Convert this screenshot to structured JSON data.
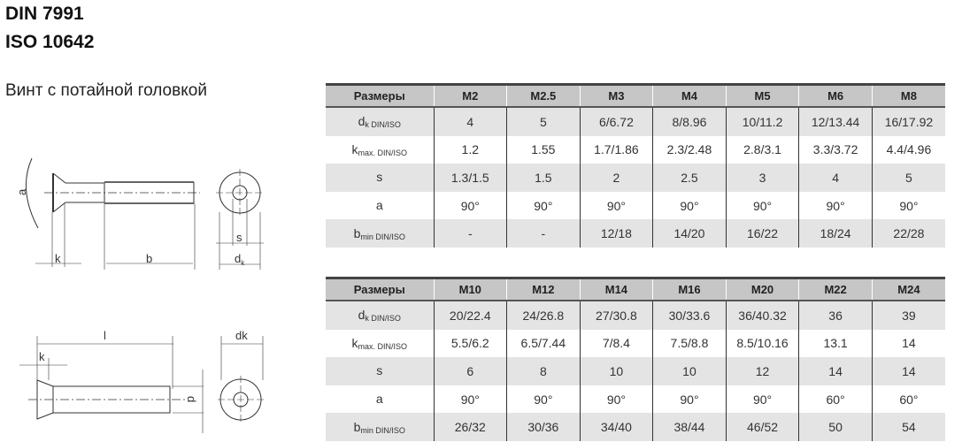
{
  "title_line1": "DIN 7991",
  "title_line2": "ISO 10642",
  "subtitle": "Винт с потайной головкой",
  "drawing_labels": {
    "a": "a",
    "k": "k",
    "b": "b",
    "s": "s",
    "dk_sub": "d",
    "dk_subscript": "k",
    "l": "l",
    "k2": "k",
    "dk": "dk",
    "d": "d"
  },
  "colors": {
    "header_bg": "#c6c6c6",
    "row_alt_bg": "#e4e4e4"
  },
  "tables": [
    {
      "header": [
        "Размеры",
        "M2",
        "M2.5",
        "M3",
        "M4",
        "M5",
        "M6",
        "M8"
      ],
      "rows": [
        {
          "label": {
            "main": "d",
            "sub": "k DIN/ISO"
          },
          "values": [
            "4",
            "5",
            "6/6.72",
            "8/8.96",
            "10/11.2",
            "12/13.44",
            "16/17.92"
          ]
        },
        {
          "label": {
            "main": "k",
            "sub": "max. DIN/ISO"
          },
          "values": [
            "1.2",
            "1.55",
            "1.7/1.86",
            "2.3/2.48",
            "2.8/3.1",
            "3.3/3.72",
            "4.4/4.96"
          ]
        },
        {
          "label": {
            "main": "s",
            "sub": ""
          },
          "values": [
            "1.3/1.5",
            "1.5",
            "2",
            "2.5",
            "3",
            "4",
            "5"
          ]
        },
        {
          "label": {
            "main": "a",
            "sub": ""
          },
          "values": [
            "90°",
            "90°",
            "90°",
            "90°",
            "90°",
            "90°",
            "90°"
          ]
        },
        {
          "label": {
            "main": "b",
            "sub": "min DIN/ISO"
          },
          "values": [
            "-",
            "-",
            "12/18",
            "14/20",
            "16/22",
            "18/24",
            "22/28"
          ]
        }
      ]
    },
    {
      "header": [
        "Размеры",
        "M10",
        "M12",
        "M14",
        "M16",
        "M20",
        "M22",
        "M24"
      ],
      "rows": [
        {
          "label": {
            "main": "d",
            "sub": "k DIN/ISO"
          },
          "values": [
            "20/22.4",
            "24/26.8",
            "27/30.8",
            "30/33.6",
            "36/40.32",
            "36",
            "39"
          ]
        },
        {
          "label": {
            "main": "k",
            "sub": "max. DIN/ISO"
          },
          "values": [
            "5.5/6.2",
            "6.5/7.44",
            "7/8.4",
            "7.5/8.8",
            "8.5/10.16",
            "13.1",
            "14"
          ]
        },
        {
          "label": {
            "main": "s",
            "sub": ""
          },
          "values": [
            "6",
            "8",
            "10",
            "10",
            "12",
            "14",
            "14"
          ]
        },
        {
          "label": {
            "main": "a",
            "sub": ""
          },
          "values": [
            "90°",
            "90°",
            "90°",
            "90°",
            "90°",
            "60°",
            "60°"
          ]
        },
        {
          "label": {
            "main": "b",
            "sub": "min DIN/ISO"
          },
          "values": [
            "26/32",
            "30/36",
            "34/40",
            "38/44",
            "46/52",
            "50",
            "54"
          ]
        }
      ]
    }
  ]
}
